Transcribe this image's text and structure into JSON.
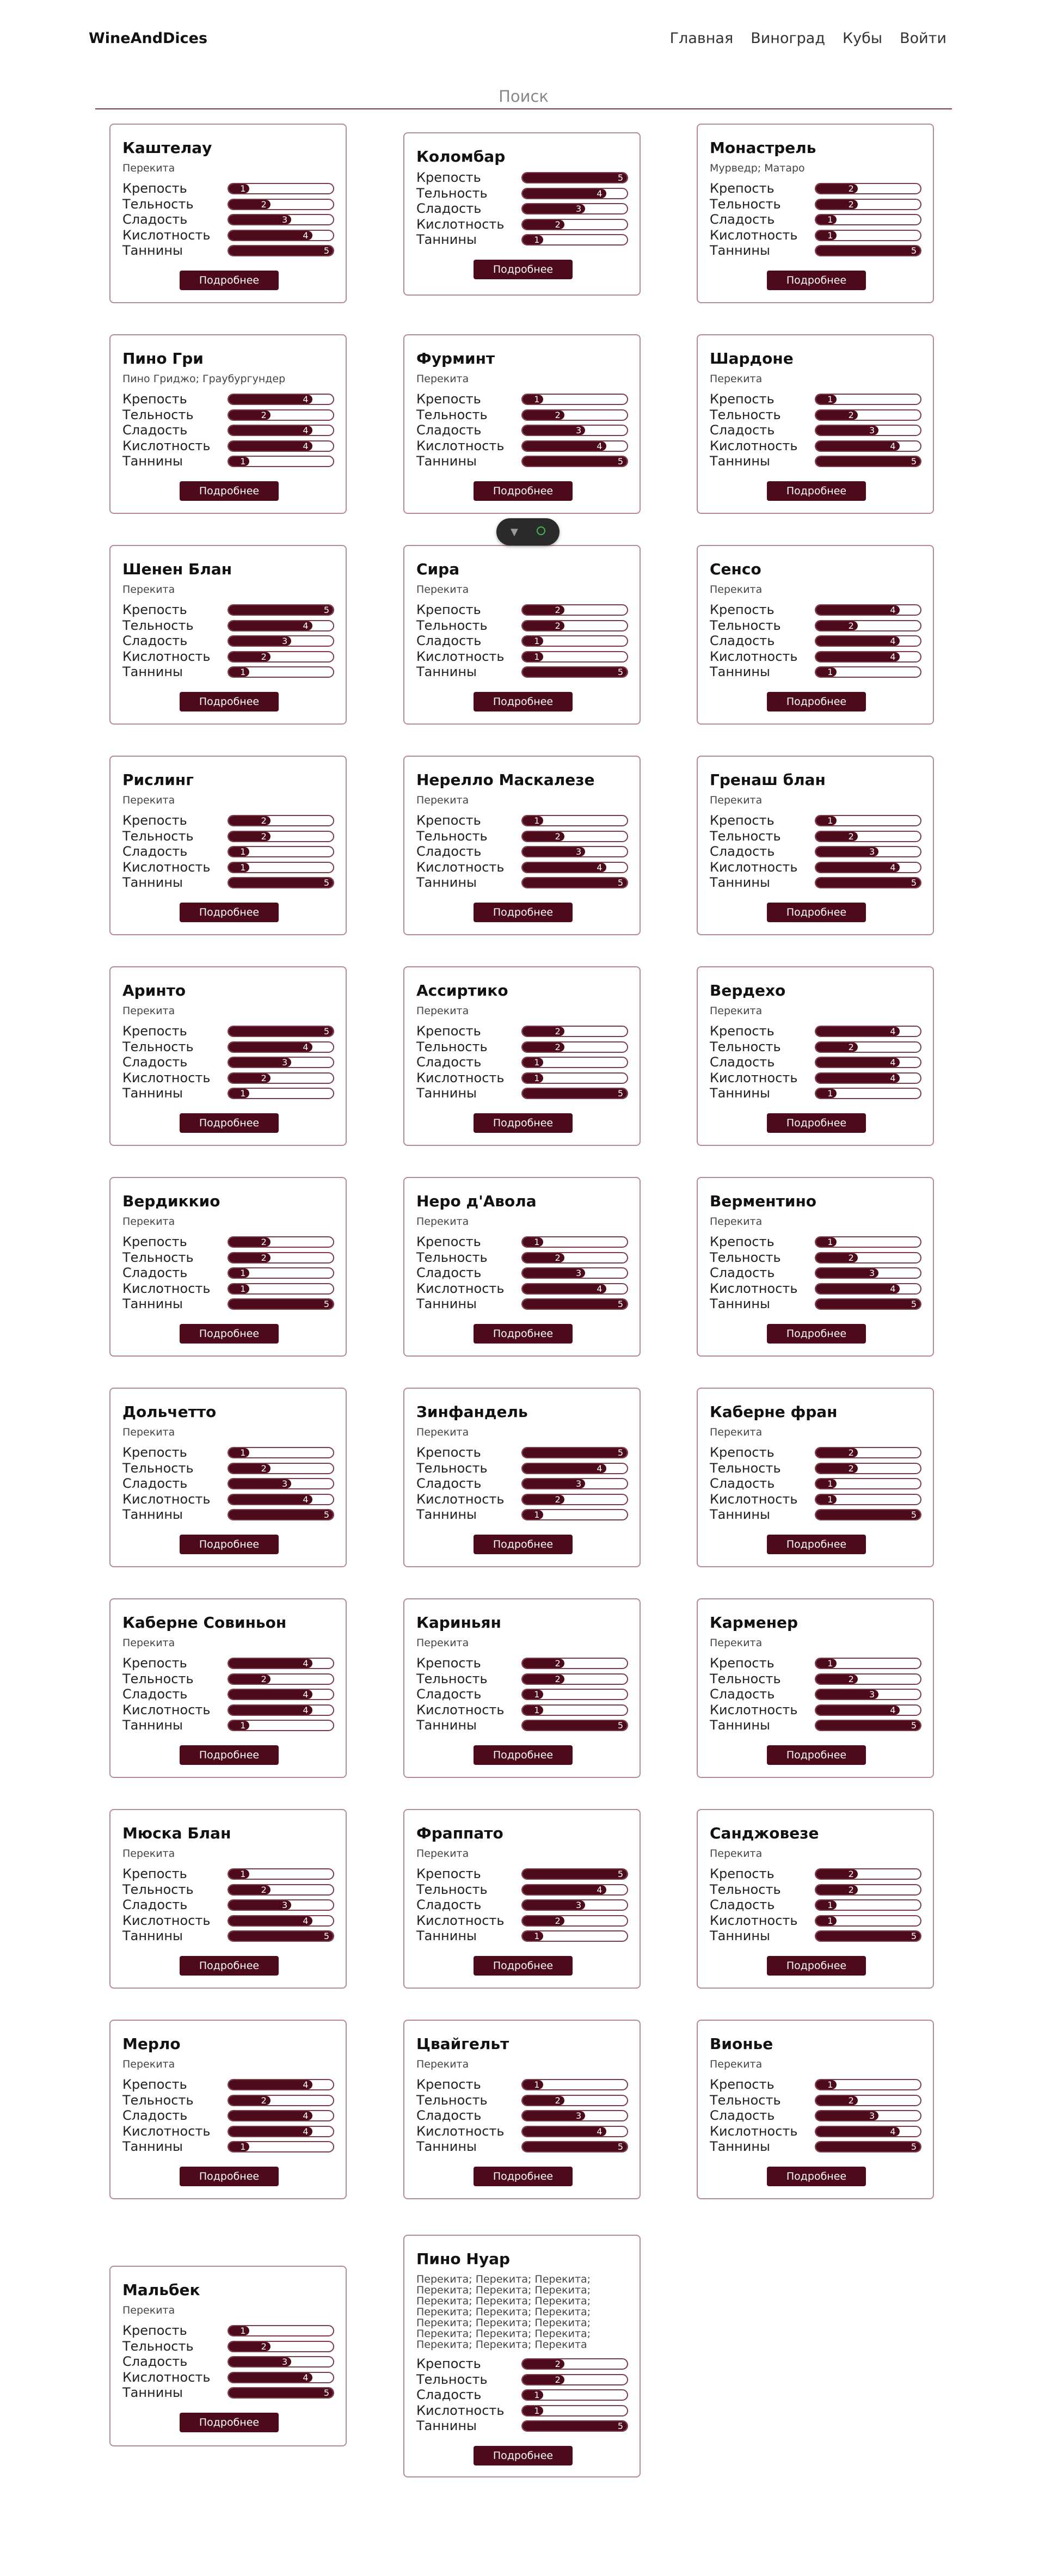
{
  "nav": {
    "brand": "WineAndDices",
    "items": [
      "Главная",
      "Виноград",
      "Кубы",
      "Войти"
    ]
  },
  "search": {
    "placeholder": "Поиск"
  },
  "labels": {
    "strength": "Крепость",
    "body": "Тельность",
    "sweetness": "Сладость",
    "acidity": "Кислотность",
    "tannins": "Таннины",
    "more": "Подробнее"
  },
  "max_value": 5,
  "colors": {
    "accent": "#4d0a1a",
    "border": "#b68a94"
  },
  "devtools_icons": [
    "vue-icon",
    "circle-icon"
  ],
  "wines": [
    {
      "name": "Каштелау",
      "synonyms": "Перекита",
      "stats": [
        1,
        2,
        3,
        4,
        5
      ]
    },
    {
      "name": "Коломбар",
      "synonyms": "",
      "stats": [
        5,
        4,
        3,
        2,
        1
      ]
    },
    {
      "name": "Монастрель",
      "synonyms": "Мурведр; Матаро",
      "stats": [
        2,
        2,
        1,
        1,
        5
      ]
    },
    {
      "name": "Пино Гри",
      "synonyms": "Пино Гриджо; Граубургундер",
      "stats": [
        4,
        2,
        4,
        4,
        1
      ]
    },
    {
      "name": "Фурминт",
      "synonyms": "Перекита",
      "stats": [
        1,
        2,
        3,
        4,
        5
      ]
    },
    {
      "name": "Шардоне",
      "synonyms": "Перекита",
      "stats": [
        1,
        2,
        3,
        4,
        5
      ]
    },
    {
      "name": "Шенен Блан",
      "synonyms": "Перекита",
      "stats": [
        5,
        4,
        3,
        2,
        1
      ]
    },
    {
      "name": "Сира",
      "synonyms": "Перекита",
      "stats": [
        2,
        2,
        1,
        1,
        5
      ]
    },
    {
      "name": "Сенсо",
      "synonyms": "Перекита",
      "stats": [
        4,
        2,
        4,
        4,
        1
      ]
    },
    {
      "name": "Рислинг",
      "synonyms": "Перекита",
      "stats": [
        2,
        2,
        1,
        1,
        5
      ]
    },
    {
      "name": "Нерелло Маскалезе",
      "synonyms": "Перекита",
      "stats": [
        1,
        2,
        3,
        4,
        5
      ]
    },
    {
      "name": "Гренаш блан",
      "synonyms": "Перекита",
      "stats": [
        1,
        2,
        3,
        4,
        5
      ]
    },
    {
      "name": "Аринто",
      "synonyms": "Перекита",
      "stats": [
        5,
        4,
        3,
        2,
        1
      ]
    },
    {
      "name": "Ассиртико",
      "synonyms": "Перекита",
      "stats": [
        2,
        2,
        1,
        1,
        5
      ]
    },
    {
      "name": "Вердехо",
      "synonyms": "Перекита",
      "stats": [
        4,
        2,
        4,
        4,
        1
      ]
    },
    {
      "name": "Вердиккио",
      "synonyms": "Перекита",
      "stats": [
        2,
        2,
        1,
        1,
        5
      ]
    },
    {
      "name": "Неро д'Авола",
      "synonyms": "Перекита",
      "stats": [
        1,
        2,
        3,
        4,
        5
      ]
    },
    {
      "name": "Верментино",
      "synonyms": "Перекита",
      "stats": [
        1,
        2,
        3,
        4,
        5
      ]
    },
    {
      "name": "Дольчетто",
      "synonyms": "Перекита",
      "stats": [
        1,
        2,
        3,
        4,
        5
      ]
    },
    {
      "name": "Зинфандель",
      "synonyms": "Перекита",
      "stats": [
        5,
        4,
        3,
        2,
        1
      ]
    },
    {
      "name": "Каберне фран",
      "synonyms": "Перекита",
      "stats": [
        2,
        2,
        1,
        1,
        5
      ]
    },
    {
      "name": "Каберне Совиньон",
      "synonyms": "Перекита",
      "stats": [
        4,
        2,
        4,
        4,
        1
      ]
    },
    {
      "name": "Кариньян",
      "synonyms": "Перекита",
      "stats": [
        2,
        2,
        1,
        1,
        5
      ]
    },
    {
      "name": "Карменер",
      "synonyms": "Перекита",
      "stats": [
        1,
        2,
        3,
        4,
        5
      ]
    },
    {
      "name": "Мюска Блан",
      "synonyms": "Перекита",
      "stats": [
        1,
        2,
        3,
        4,
        5
      ]
    },
    {
      "name": "Фраппато",
      "synonyms": "Перекита",
      "stats": [
        5,
        4,
        3,
        2,
        1
      ]
    },
    {
      "name": "Санджовезе",
      "synonyms": "Перекита",
      "stats": [
        2,
        2,
        1,
        1,
        5
      ]
    },
    {
      "name": "Мерло",
      "synonyms": "Перекита",
      "stats": [
        4,
        2,
        4,
        4,
        1
      ]
    },
    {
      "name": "Цвайгельт",
      "synonyms": "Перекита",
      "stats": [
        1,
        2,
        3,
        4,
        5
      ]
    },
    {
      "name": "Вионье",
      "synonyms": "Перекита",
      "stats": [
        1,
        2,
        3,
        4,
        5
      ]
    },
    {
      "name": "Мальбек",
      "synonyms": "Перекита",
      "stats": [
        1,
        2,
        3,
        4,
        5
      ]
    },
    {
      "name": "Пино Нуар",
      "synonyms": "Перекита; Перекита; Перекита; Перекита; Перекита; Перекита; Перекита; Перекита; Перекита; Перекита; Перекита; Перекита; Перекита; Перекита; Перекита; Перекита; Перекита; Перекита; Перекита; Перекита; Перекита",
      "stats": [
        2,
        2,
        1,
        1,
        5
      ]
    }
  ]
}
